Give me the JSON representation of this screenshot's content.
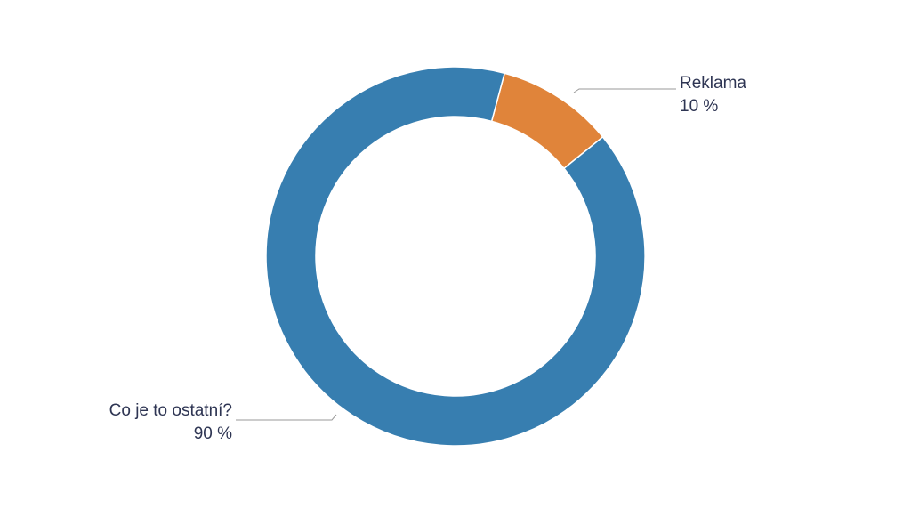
{
  "chart_data": {
    "type": "pie",
    "donut": true,
    "legend": "none",
    "label_color": "#2e3553",
    "leader_color": "#9a9a9a",
    "slices": [
      {
        "label": "Reklama",
        "value": 10,
        "value_label": "10 %",
        "color": "#e0843a"
      },
      {
        "label": "Co je to ostatní?",
        "value": 90,
        "value_label": "90 %",
        "color": "#377eb0"
      }
    ]
  }
}
